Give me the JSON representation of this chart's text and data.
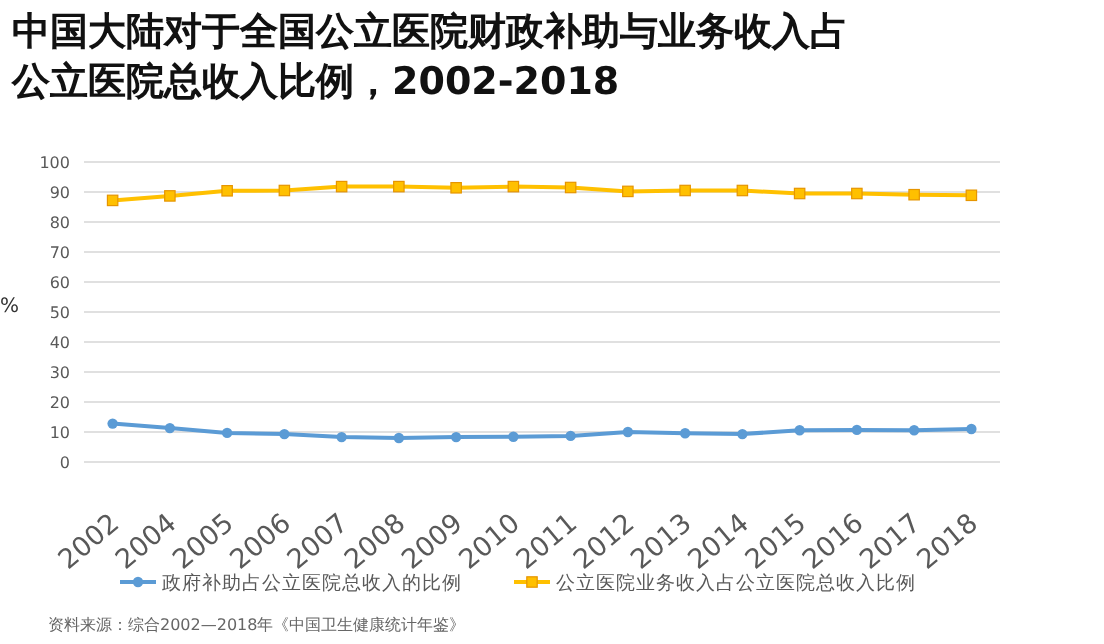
{
  "chart_data": {
    "type": "line",
    "title": "中国大陆对于全国公立医院财政补助与业务收入占公立医院总收入比例，2002-2018",
    "ylabel": "%",
    "categories": [
      "2002",
      "2004",
      "2005",
      "2006",
      "2007",
      "2008",
      "2009",
      "2010",
      "2011",
      "2012",
      "2013",
      "2014",
      "2015",
      "2016",
      "2017",
      "2018"
    ],
    "series": [
      {
        "name": "政府补助占公立医院总收入的比例",
        "color": "#5b9bd5",
        "marker": "circle",
        "values": [
          12.8,
          11.3,
          9.7,
          9.3,
          8.3,
          8.0,
          8.3,
          8.4,
          8.7,
          10.0,
          9.6,
          9.3,
          10.6,
          10.7,
          10.6,
          11.0
        ]
      },
      {
        "name": "公立医院业务收入占公立医院总收入比例",
        "color": "#ffc000",
        "marker": "square",
        "values": [
          87.2,
          88.7,
          90.4,
          90.5,
          91.8,
          91.8,
          91.4,
          91.8,
          91.5,
          90.2,
          90.5,
          90.5,
          89.5,
          89.5,
          89.1,
          88.9
        ]
      }
    ],
    "ylim": [
      0,
      100
    ],
    "yticks": [
      0,
      10,
      20,
      30,
      40,
      50,
      60,
      70,
      80,
      90,
      100
    ],
    "grid": "y",
    "legend": "bottom",
    "annotations": [
      "资料来源：综合2002—2018年《中国卫生健康统计年鉴》"
    ]
  }
}
